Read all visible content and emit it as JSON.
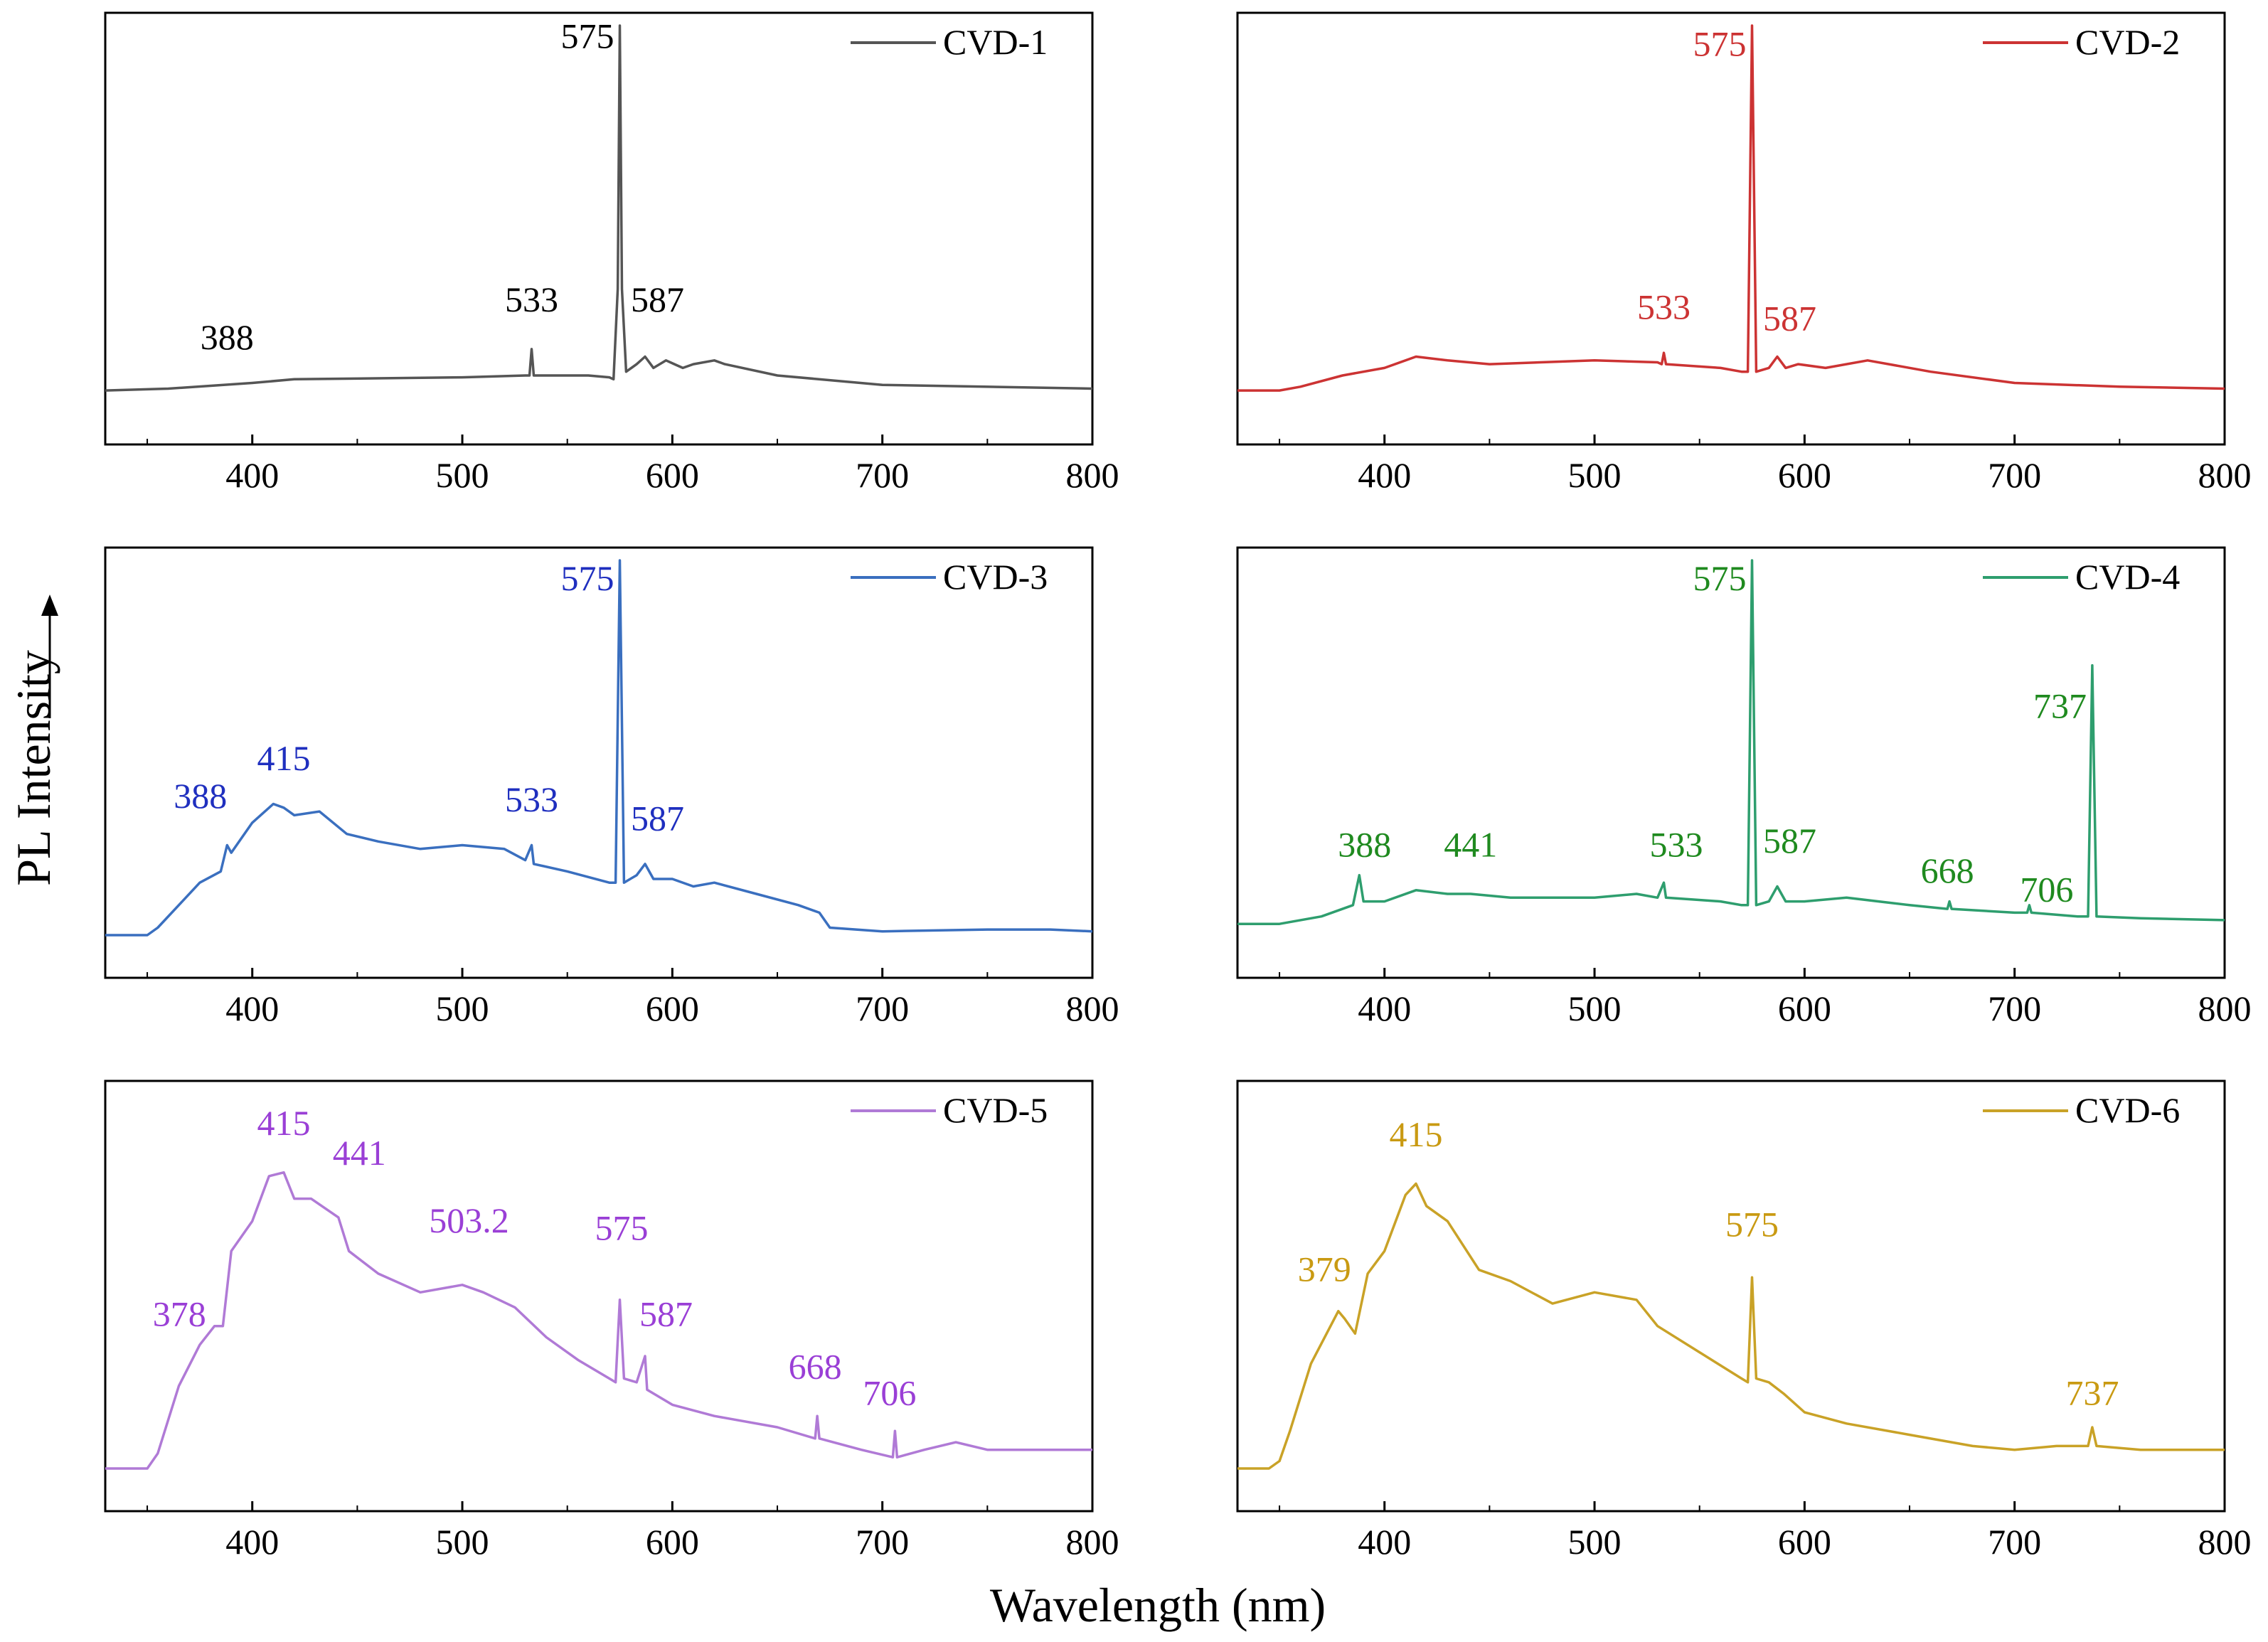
{
  "figure": {
    "xlabel": "Wavelength (nm)",
    "ylabel": "PL Intensity"
  },
  "chart_data": [
    {
      "type": "line",
      "name": "CVD-1",
      "color": "#555555",
      "label_color": "#000000",
      "xlim": [
        330,
        800
      ],
      "x_ticks": [
        400,
        500,
        600,
        700,
        800
      ],
      "ylim": [
        0,
        100
      ],
      "points": [
        [
          330,
          3
        ],
        [
          360,
          3.5
        ],
        [
          400,
          5
        ],
        [
          420,
          6
        ],
        [
          500,
          6.5
        ],
        [
          530,
          7
        ],
        [
          532,
          7
        ],
        [
          533,
          14
        ],
        [
          534,
          7
        ],
        [
          560,
          7
        ],
        [
          570,
          6.5
        ],
        [
          572,
          6
        ],
        [
          574,
          30
        ],
        [
          575,
          100
        ],
        [
          576,
          30
        ],
        [
          578,
          8
        ],
        [
          583,
          10
        ],
        [
          587,
          12
        ],
        [
          591,
          9
        ],
        [
          597,
          11
        ],
        [
          601,
          10
        ],
        [
          605,
          9
        ],
        [
          610,
          10
        ],
        [
          620,
          11
        ],
        [
          625,
          10
        ],
        [
          650,
          7
        ],
        [
          700,
          4.5
        ],
        [
          800,
          3.5
        ]
      ],
      "peaks": [
        {
          "x": 388,
          "text": "388",
          "ly": 14
        },
        {
          "x": 533,
          "text": "533",
          "ly": 24
        },
        {
          "x": 575,
          "text": "575",
          "ly": 94,
          "anchor": "end",
          "dx": -8
        },
        {
          "x": 587,
          "text": "587",
          "ly": 24,
          "anchor": "start",
          "dx": -20
        }
      ],
      "legend": {
        "label": "CVD-1"
      }
    },
    {
      "type": "line",
      "name": "CVD-2",
      "color": "#cc3333",
      "label_color": "#cc3333",
      "xlim": [
        330,
        800
      ],
      "x_ticks": [
        400,
        500,
        600,
        700,
        800
      ],
      "ylim": [
        0,
        100
      ],
      "points": [
        [
          330,
          3
        ],
        [
          350,
          3
        ],
        [
          360,
          4
        ],
        [
          380,
          7
        ],
        [
          400,
          9
        ],
        [
          415,
          12
        ],
        [
          430,
          11
        ],
        [
          450,
          10
        ],
        [
          500,
          11
        ],
        [
          530,
          10.5
        ],
        [
          532,
          10
        ],
        [
          533,
          13
        ],
        [
          534,
          10
        ],
        [
          560,
          9
        ],
        [
          570,
          8
        ],
        [
          573,
          8
        ],
        [
          575,
          100
        ],
        [
          577,
          8
        ],
        [
          583,
          9
        ],
        [
          587,
          12
        ],
        [
          591,
          9
        ],
        [
          597,
          10
        ],
        [
          610,
          9
        ],
        [
          630,
          11
        ],
        [
          660,
          8
        ],
        [
          700,
          5
        ],
        [
          750,
          4
        ],
        [
          800,
          3.5
        ]
      ],
      "peaks": [
        {
          "x": 533,
          "text": "533",
          "ly": 22
        },
        {
          "x": 575,
          "text": "575",
          "ly": 92,
          "anchor": "end",
          "dx": -8
        },
        {
          "x": 587,
          "text": "587",
          "ly": 19,
          "anchor": "start",
          "dx": -20
        }
      ],
      "legend": {
        "label": "CVD-2"
      }
    },
    {
      "type": "line",
      "name": "CVD-3",
      "color": "#3a6fbf",
      "label_color": "#1f2fbf",
      "xlim": [
        330,
        800
      ],
      "x_ticks": [
        400,
        500,
        600,
        700,
        800
      ],
      "ylim": [
        0,
        100
      ],
      "points": [
        [
          330,
          0
        ],
        [
          350,
          0
        ],
        [
          355,
          2
        ],
        [
          365,
          8
        ],
        [
          375,
          14
        ],
        [
          385,
          17
        ],
        [
          388,
          24
        ],
        [
          390,
          22
        ],
        [
          400,
          30
        ],
        [
          410,
          35
        ],
        [
          415,
          34
        ],
        [
          420,
          32
        ],
        [
          432,
          33
        ],
        [
          445,
          27
        ],
        [
          460,
          25
        ],
        [
          480,
          23
        ],
        [
          500,
          24
        ],
        [
          520,
          23
        ],
        [
          530,
          20
        ],
        [
          533,
          24
        ],
        [
          534,
          19
        ],
        [
          550,
          17
        ],
        [
          570,
          14
        ],
        [
          573,
          14
        ],
        [
          575,
          100
        ],
        [
          577,
          14
        ],
        [
          583,
          16
        ],
        [
          587,
          19
        ],
        [
          591,
          15
        ],
        [
          600,
          15
        ],
        [
          610,
          13
        ],
        [
          620,
          14
        ],
        [
          640,
          11
        ],
        [
          660,
          8
        ],
        [
          670,
          6
        ],
        [
          675,
          2
        ],
        [
          700,
          1
        ],
        [
          750,
          1.5
        ],
        [
          780,
          1.5
        ],
        [
          800,
          1
        ]
      ],
      "peaks": [
        {
          "x": 388,
          "text": "388",
          "ly": 34,
          "anchor": "end",
          "dx": 0
        },
        {
          "x": 415,
          "text": "415",
          "ly": 44
        },
        {
          "x": 533,
          "text": "533",
          "ly": 33
        },
        {
          "x": 575,
          "text": "575",
          "ly": 92,
          "anchor": "end",
          "dx": -8
        },
        {
          "x": 587,
          "text": "587",
          "ly": 28,
          "anchor": "start",
          "dx": -20
        }
      ],
      "legend": {
        "label": "CVD-3"
      }
    },
    {
      "type": "line",
      "name": "CVD-4",
      "color": "#2e9e6e",
      "label_color": "#1f8a1f",
      "xlim": [
        330,
        800
      ],
      "x_ticks": [
        400,
        500,
        600,
        700,
        800
      ],
      "ylim": [
        0,
        100
      ],
      "points": [
        [
          330,
          3
        ],
        [
          350,
          3
        ],
        [
          370,
          5
        ],
        [
          385,
          8
        ],
        [
          388,
          16
        ],
        [
          390,
          9
        ],
        [
          400,
          9
        ],
        [
          415,
          12
        ],
        [
          430,
          11
        ],
        [
          441,
          11
        ],
        [
          460,
          10
        ],
        [
          500,
          10
        ],
        [
          520,
          11
        ],
        [
          530,
          10
        ],
        [
          533,
          14
        ],
        [
          534,
          10
        ],
        [
          560,
          9
        ],
        [
          570,
          8
        ],
        [
          573,
          8
        ],
        [
          575,
          100
        ],
        [
          577,
          8
        ],
        [
          583,
          9
        ],
        [
          587,
          13
        ],
        [
          591,
          9
        ],
        [
          600,
          9
        ],
        [
          620,
          10
        ],
        [
          650,
          8
        ],
        [
          668,
          7
        ],
        [
          669,
          9
        ],
        [
          670,
          7
        ],
        [
          700,
          6
        ],
        [
          706,
          6
        ],
        [
          707,
          8
        ],
        [
          708,
          6
        ],
        [
          730,
          5
        ],
        [
          735,
          5
        ],
        [
          737,
          72
        ],
        [
          739,
          5
        ],
        [
          760,
          4.5
        ],
        [
          800,
          4
        ]
      ],
      "peaks": [
        {
          "x": 388,
          "text": "388",
          "ly": 21,
          "anchor": "start",
          "dx": -30
        },
        {
          "x": 441,
          "text": "441",
          "ly": 21
        },
        {
          "x": 533,
          "text": "533",
          "ly": 21,
          "anchor": "start",
          "dx": -20
        },
        {
          "x": 575,
          "text": "575",
          "ly": 92,
          "anchor": "end",
          "dx": -8
        },
        {
          "x": 587,
          "text": "587",
          "ly": 22,
          "anchor": "start",
          "dx": -20
        },
        {
          "x": 668,
          "text": "668",
          "ly": 14
        },
        {
          "x": 706,
          "text": "706",
          "ly": 9,
          "anchor": "start",
          "dx": -10
        },
        {
          "x": 737,
          "text": "737",
          "ly": 58,
          "anchor": "end",
          "dx": -8
        }
      ],
      "legend": {
        "label": "CVD-4"
      }
    },
    {
      "type": "line",
      "name": "CVD-5",
      "color": "#b07ad6",
      "label_color": "#9a3fd6",
      "xlim": [
        330,
        800
      ],
      "x_ticks": [
        400,
        500,
        600,
        700,
        800
      ],
      "ylim": [
        0,
        100
      ],
      "points": [
        [
          330,
          0
        ],
        [
          350,
          0
        ],
        [
          355,
          4
        ],
        [
          365,
          22
        ],
        [
          375,
          33
        ],
        [
          382,
          38
        ],
        [
          386,
          38
        ],
        [
          390,
          58
        ],
        [
          400,
          66
        ],
        [
          408,
          78
        ],
        [
          415,
          79
        ],
        [
          420,
          72
        ],
        [
          428,
          72
        ],
        [
          441,
          67
        ],
        [
          446,
          58
        ],
        [
          460,
          52
        ],
        [
          480,
          47
        ],
        [
          500,
          49
        ],
        [
          510,
          47
        ],
        [
          525,
          43
        ],
        [
          540,
          35
        ],
        [
          555,
          29
        ],
        [
          570,
          24
        ],
        [
          573,
          23
        ],
        [
          575,
          45
        ],
        [
          577,
          24
        ],
        [
          583,
          23
        ],
        [
          587,
          30
        ],
        [
          588,
          21
        ],
        [
          600,
          17
        ],
        [
          620,
          14
        ],
        [
          650,
          11
        ],
        [
          668,
          8
        ],
        [
          669,
          14
        ],
        [
          670,
          8
        ],
        [
          690,
          5
        ],
        [
          705,
          3
        ],
        [
          706,
          10
        ],
        [
          707,
          3
        ],
        [
          720,
          5
        ],
        [
          735,
          7
        ],
        [
          750,
          5
        ],
        [
          770,
          5
        ],
        [
          800,
          5
        ]
      ],
      "peaks": [
        {
          "x": 378,
          "text": "378",
          "ly": 38,
          "anchor": "end",
          "dx": 0
        },
        {
          "x": 415,
          "text": "415",
          "ly": 89
        },
        {
          "x": 441,
          "text": "441",
          "ly": 81,
          "anchor": "start",
          "dx": -8
        },
        {
          "x": 503.2,
          "text": "503.2",
          "ly": 63
        },
        {
          "x": 575,
          "text": "575",
          "ly": 61,
          "anchor": "start",
          "dx": -35
        },
        {
          "x": 587,
          "text": "587",
          "ly": 38,
          "anchor": "start",
          "dx": -8
        },
        {
          "x": 668,
          "text": "668",
          "ly": 24
        },
        {
          "x": 706,
          "text": "706",
          "ly": 17,
          "anchor": "start",
          "dx": -45
        }
      ],
      "legend": {
        "label": "CVD-5"
      }
    },
    {
      "type": "line",
      "name": "CVD-6",
      "color": "#c9a227",
      "label_color": "#c99a12",
      "xlim": [
        330,
        800
      ],
      "x_ticks": [
        400,
        500,
        600,
        700,
        800
      ],
      "ylim": [
        0,
        100
      ],
      "points": [
        [
          330,
          0
        ],
        [
          345,
          0
        ],
        [
          350,
          2
        ],
        [
          355,
          10
        ],
        [
          365,
          28
        ],
        [
          378,
          42
        ],
        [
          381,
          40
        ],
        [
          386,
          36
        ],
        [
          392,
          52
        ],
        [
          400,
          58
        ],
        [
          410,
          73
        ],
        [
          415,
          76
        ],
        [
          420,
          70
        ],
        [
          430,
          66
        ],
        [
          445,
          53
        ],
        [
          460,
          50
        ],
        [
          480,
          44
        ],
        [
          500,
          47
        ],
        [
          520,
          45
        ],
        [
          530,
          38
        ],
        [
          550,
          31
        ],
        [
          570,
          24
        ],
        [
          573,
          23
        ],
        [
          575,
          51
        ],
        [
          577,
          24
        ],
        [
          583,
          23
        ],
        [
          590,
          20
        ],
        [
          600,
          15
        ],
        [
          620,
          12
        ],
        [
          650,
          9
        ],
        [
          680,
          6
        ],
        [
          700,
          5
        ],
        [
          720,
          6
        ],
        [
          735,
          6
        ],
        [
          737,
          11
        ],
        [
          739,
          6
        ],
        [
          760,
          5
        ],
        [
          800,
          5
        ]
      ],
      "peaks": [
        {
          "x": 379,
          "text": "379",
          "ly": 50,
          "anchor": "end",
          "dx": 15
        },
        {
          "x": 415,
          "text": "415",
          "ly": 86
        },
        {
          "x": 575,
          "text": "575",
          "ly": 62
        },
        {
          "x": 737,
          "text": "737",
          "ly": 17
        }
      ],
      "legend": {
        "label": "CVD-6"
      }
    }
  ]
}
